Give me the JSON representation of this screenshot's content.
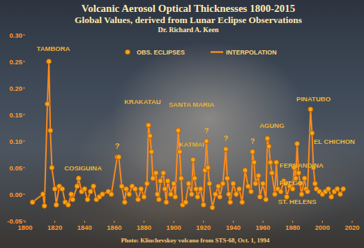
{
  "chart_data": {
    "type": "line",
    "title": "Volcanic Aerosol Optical Thicknesses 1800-2015",
    "subtitle": "Global Values, derived from Lunar Eclipse Observations",
    "author": "Dr. Richard A. Keen",
    "credit": "Photo: Kliuchevskoy volcano from STS-68, Oct. 1, 1994",
    "x": [
      1805,
      1812,
      1813,
      1815,
      1816,
      1817,
      1818,
      1820,
      1821,
      1823,
      1825,
      1827,
      1829,
      1831,
      1832,
      1835,
      1836,
      1838,
      1840,
      1842,
      1844,
      1846,
      1848,
      1850,
      1852,
      1856,
      1858,
      1862,
      1863,
      1865,
      1867,
      1868,
      1870,
      1872,
      1874,
      1876,
      1878,
      1880,
      1882,
      1883,
      1884,
      1885,
      1886,
      1888,
      1889,
      1890,
      1891,
      1893,
      1894,
      1895,
      1896,
      1898,
      1900,
      1901,
      1903,
      1904,
      1905,
      1906,
      1908,
      1910,
      1912,
      1913,
      1914,
      1915,
      1916,
      1918,
      1920,
      1921,
      1922,
      1923,
      1924,
      1926,
      1928,
      1930,
      1931,
      1933,
      1935,
      1936,
      1937,
      1938,
      1940,
      1942,
      1944,
      1946,
      1948,
      1950,
      1952,
      1953,
      1954,
      1955,
      1957,
      1958,
      1960,
      1962,
      1963,
      1964,
      1965,
      1966,
      1968,
      1969,
      1970,
      1972,
      1974,
      1975,
      1976,
      1978,
      1980,
      1981,
      1982,
      1983,
      1984,
      1985,
      1986,
      1988,
      1989,
      1990,
      1992,
      1993,
      1994,
      1995,
      1996,
      1998,
      2000,
      2002,
      2004,
      2006,
      2008,
      2010,
      2012,
      2014
    ],
    "series": [
      {
        "name": "OBS. ECLIPSES",
        "type": "scatter",
        "marker": "circle",
        "color": "#f7a21b",
        "values": [
          -0.015,
          0.0,
          -0.022,
          0.17,
          0.25,
          0.12,
          0.05,
          0.01,
          -0.02,
          0.015,
          0.01,
          -0.015,
          -0.02,
          0.0,
          -0.01,
          0.015,
          0.03,
          0.005,
          0.01,
          -0.01,
          0.005,
          0.015,
          -0.01,
          -0.005,
          0.0,
          0.005,
          0.0,
          0.07,
          0.07,
          0.015,
          -0.015,
          0.01,
          0.0,
          0.015,
          0.01,
          -0.01,
          0.01,
          -0.005,
          0.02,
          0.13,
          0.11,
          0.08,
          0.03,
          0.04,
          0.0,
          -0.01,
          0.025,
          0.04,
          0.01,
          -0.015,
          0.025,
          0.0,
          0.02,
          -0.005,
          0.12,
          0.08,
          0.03,
          -0.02,
          -0.015,
          0.02,
          0.0,
          0.065,
          0.03,
          0.01,
          -0.005,
          0.01,
          -0.02,
          0.045,
          0.1,
          0.05,
          0.02,
          -0.025,
          0.0,
          0.015,
          -0.005,
          0.02,
          0.085,
          0.03,
          0.0,
          -0.015,
          0.02,
          0.0,
          0.01,
          -0.015,
          0.045,
          0.015,
          0.005,
          0.08,
          0.06,
          0.02,
          0.035,
          -0.005,
          0.02,
          -0.01,
          0.105,
          0.09,
          0.06,
          0.04,
          0.0,
          0.06,
          0.01,
          0.005,
          0.025,
          0.02,
          -0.005,
          0.015,
          0.01,
          0.05,
          0.03,
          0.095,
          0.04,
          0.02,
          0.0,
          0.03,
          0.01,
          0.005,
          0.16,
          0.115,
          0.05,
          0.02,
          0.01,
          0.005,
          0.0,
          0.005,
          0.01,
          -0.005,
          0.005,
          0.01,
          0.0,
          0.01
        ]
      },
      {
        "name": "INTERPOLATION",
        "type": "line",
        "line_style": "solid",
        "color": "#ff8a1a",
        "values": [
          -0.015,
          0.0,
          -0.022,
          0.17,
          0.25,
          0.12,
          0.05,
          0.01,
          -0.02,
          0.015,
          0.01,
          -0.015,
          -0.02,
          0.0,
          -0.01,
          0.015,
          0.03,
          0.005,
          0.01,
          -0.01,
          0.005,
          0.015,
          -0.01,
          -0.005,
          0.0,
          0.005,
          0.0,
          0.07,
          0.07,
          0.015,
          -0.015,
          0.01,
          0.0,
          0.015,
          0.01,
          -0.01,
          0.01,
          -0.005,
          0.02,
          0.13,
          0.11,
          0.08,
          0.03,
          0.04,
          0.0,
          -0.01,
          0.025,
          0.04,
          0.01,
          -0.015,
          0.025,
          0.0,
          0.02,
          -0.005,
          0.12,
          0.08,
          0.03,
          -0.02,
          -0.015,
          0.02,
          0.0,
          0.065,
          0.03,
          0.01,
          -0.005,
          0.01,
          -0.02,
          0.045,
          0.1,
          0.05,
          0.02,
          -0.025,
          0.0,
          0.015,
          -0.005,
          0.02,
          0.085,
          0.03,
          0.0,
          -0.015,
          0.02,
          0.0,
          0.01,
          -0.015,
          0.045,
          0.015,
          0.005,
          0.08,
          0.06,
          0.02,
          0.035,
          -0.005,
          0.02,
          -0.01,
          0.105,
          0.09,
          0.06,
          0.04,
          0.0,
          0.06,
          0.01,
          0.005,
          0.025,
          0.02,
          -0.005,
          0.015,
          0.01,
          0.05,
          0.03,
          0.095,
          0.04,
          0.02,
          0.0,
          0.03,
          0.01,
          0.005,
          0.16,
          0.115,
          0.05,
          0.02,
          0.01,
          0.005,
          0.0,
          0.005,
          0.01,
          -0.005,
          0.005,
          0.01,
          0.0,
          0.01
        ]
      }
    ],
    "xlim": [
      1800,
      2020
    ],
    "xticks": [
      1800,
      1820,
      1840,
      1860,
      1880,
      1900,
      1920,
      1940,
      1960,
      1980,
      2000,
      2020
    ],
    "ylim": [
      -0.05,
      0.3
    ],
    "yticks": [
      {
        "value": -0.05,
        "label": "-0.05"
      },
      {
        "value": 0,
        "label": "0.00"
      },
      {
        "value": 0.05,
        "label": "0.05"
      },
      {
        "value": 0.1,
        "label": "0.10"
      },
      {
        "value": 0.15,
        "label": "0.15"
      },
      {
        "value": 0.2,
        "label": "0.20"
      },
      {
        "value": 0.25,
        "label": "0.25"
      },
      {
        "value": 0.3,
        "label": "0.30"
      }
    ],
    "grid": false,
    "legend": "top",
    "annotations": [
      {
        "text": "TAMBORA",
        "x": 1819,
        "y": 0.27
      },
      {
        "text": "COSIGUINA",
        "x": 1839,
        "y": 0.045
      },
      {
        "text": "?",
        "x": 1862,
        "y": 0.085
      },
      {
        "text": "KRAKATAU",
        "x": 1879,
        "y": 0.17
      },
      {
        "text": "SANTA MARIA",
        "x": 1912,
        "y": 0.165
      },
      {
        "text": "KATMAI",
        "x": 1912,
        "y": 0.09
      },
      {
        "text": "?",
        "x": 1922,
        "y": 0.115
      },
      {
        "text": "?",
        "x": 1935,
        "y": 0.1
      },
      {
        "text": "?",
        "x": 1953,
        "y": 0.095
      },
      {
        "text": "AGUNG",
        "x": 1966,
        "y": 0.125
      },
      {
        "text": "PINATUBO",
        "x": 1994,
        "y": 0.175
      },
      {
        "text": "EL CHICHON",
        "x": 2008,
        "y": 0.095
      },
      {
        "text": "FERNANDINA",
        "x": 1986,
        "y": 0.05
      },
      {
        "text": "FUEGO",
        "x": 1979,
        "y": 0.017
      },
      {
        "text": "ST. HELENS",
        "x": 1983,
        "y": -0.018
      }
    ]
  }
}
